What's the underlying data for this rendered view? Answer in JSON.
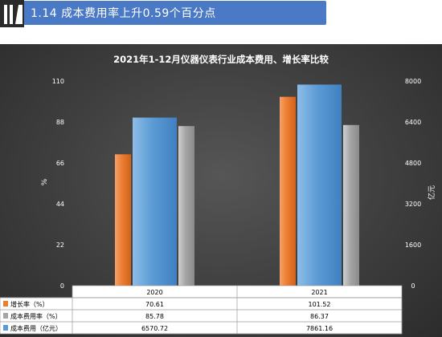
{
  "header": {
    "section_title": "1.14 成本费用率上升0.59个百分点"
  },
  "colors": {
    "title_bar": "#4a79c6",
    "growth_rate": "#ed7d31",
    "cost_rate": "#a5a5a5",
    "cost": "#5b9bd5",
    "panel_background": "#3c3c3c"
  },
  "chart_data": {
    "type": "bar",
    "title": "2021年1-12月仪器仪表行业成本费用、增长率比较",
    "categories": [
      "2020",
      "2021"
    ],
    "left_axis": {
      "label": "%",
      "ylim": [
        0,
        110
      ],
      "ticks": [
        "0",
        "22",
        "44",
        "66",
        "88",
        "110"
      ]
    },
    "right_axis": {
      "label": "亿元",
      "ylim": [
        0,
        8000
      ],
      "ticks": [
        "0",
        "1600",
        "3200",
        "4800",
        "6400",
        "8000"
      ]
    },
    "series": [
      {
        "name": "增长率（%）",
        "axis": "left",
        "color": "#ed7d31",
        "values": [
          70.61,
          101.52
        ],
        "labels": [
          "70.61",
          "101.52"
        ]
      },
      {
        "name": "成本费用（亿元）",
        "axis": "right",
        "color": "#5b9bd5",
        "values": [
          6570.72,
          7861.16
        ],
        "labels": [
          "6570.72",
          "7861.16"
        ]
      },
      {
        "name": "成本费用率（%）",
        "axis": "left",
        "color": "#a5a5a5",
        "values": [
          85.78,
          86.37
        ],
        "labels": [
          "85.78",
          "86.37"
        ]
      }
    ],
    "table": {
      "rows": [
        {
          "legend": "增长率（%）",
          "color": "#ed7d31",
          "values": [
            "70.61",
            "101.52"
          ]
        },
        {
          "legend": "成本费用率（%）",
          "color": "#a5a5a5",
          "values": [
            "85.78",
            "86.37"
          ]
        },
        {
          "legend": "成本费用（亿元）",
          "color": "#5b9bd5",
          "values": [
            "6570.72",
            "7861.16"
          ]
        }
      ]
    },
    "grid": false
  }
}
